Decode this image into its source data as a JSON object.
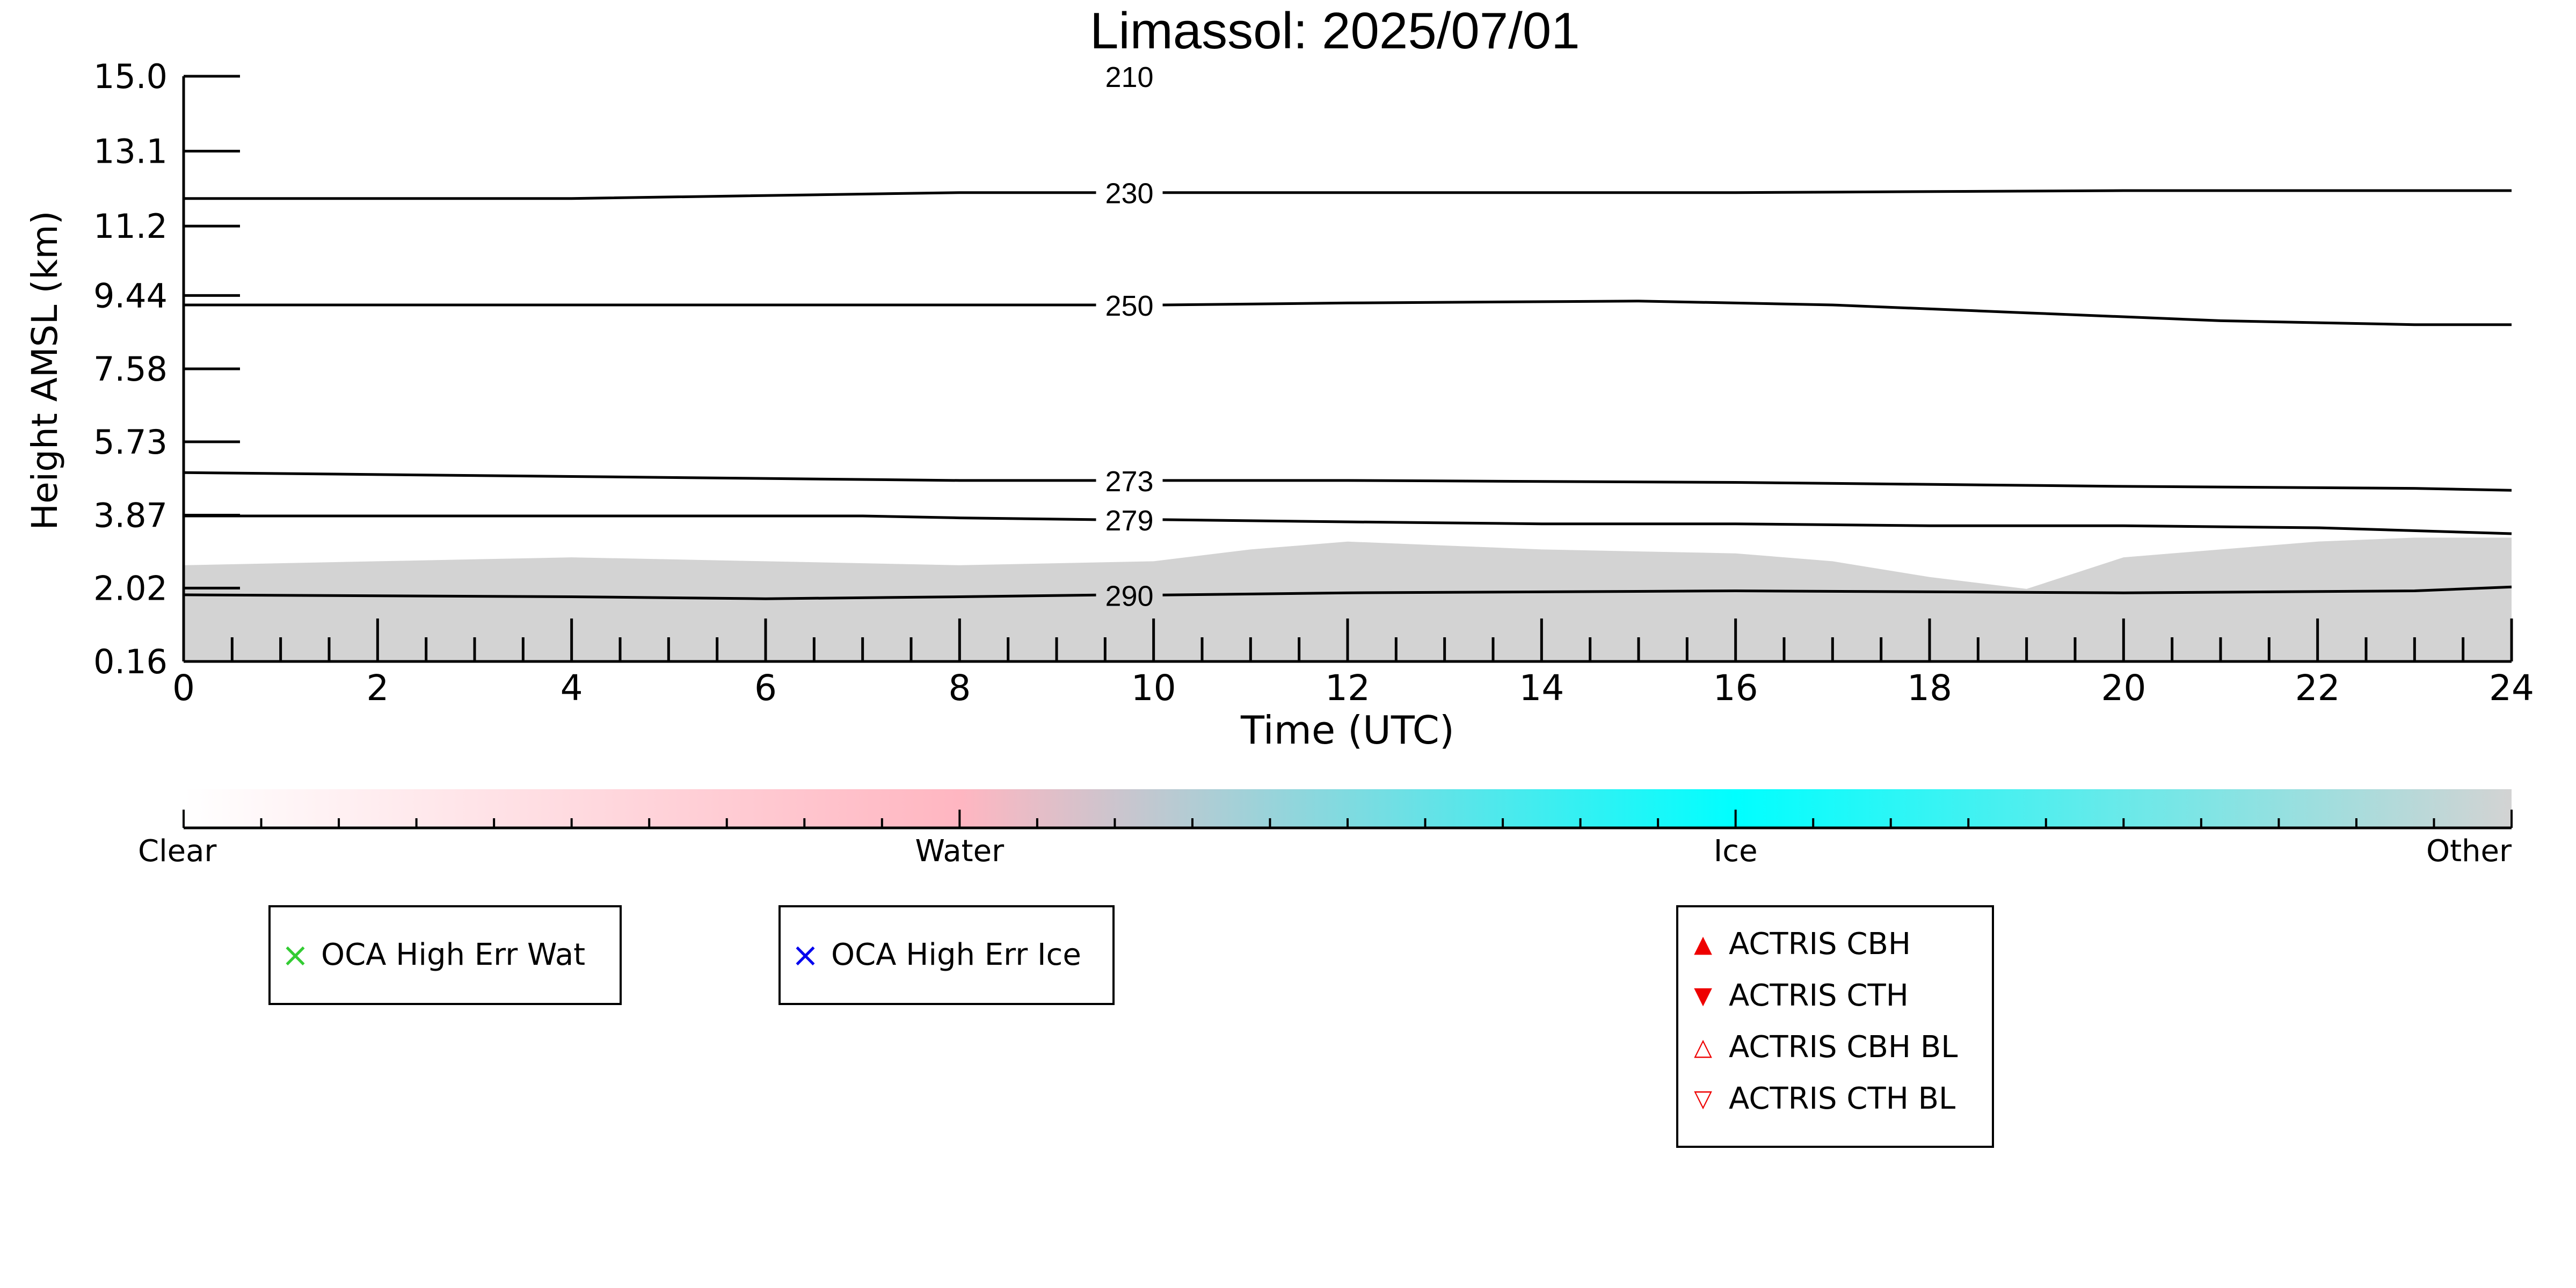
{
  "chart_data": {
    "type": "heatmap",
    "title": "Limassol: 2025/07/01",
    "xlabel": "Time (UTC)",
    "ylabel": "Height AMSL (km)",
    "xlim": [
      0,
      24
    ],
    "ylim": [
      0.16,
      15.0
    ],
    "x_tick_labels": [
      "0",
      "2",
      "4",
      "6",
      "8",
      "10",
      "12",
      "14",
      "16",
      "18",
      "20",
      "22",
      "24"
    ],
    "y_tick_labels": [
      "0.16",
      "2.02",
      "3.87",
      "5.73",
      "7.58",
      "9.44",
      "11.2",
      "13.1",
      "15.0"
    ],
    "y_tick_values": [
      0.16,
      2.02,
      3.87,
      5.73,
      7.58,
      9.44,
      11.2,
      13.1,
      15.0
    ],
    "aerosol_layer": {
      "color": "#d3d3d3",
      "x": [
        0,
        2,
        4,
        6,
        8,
        10,
        11,
        12,
        14,
        16,
        17,
        18,
        19,
        20,
        21,
        22,
        23,
        24
      ],
      "top_km": [
        2.6,
        2.7,
        2.8,
        2.7,
        2.6,
        2.7,
        3.0,
        3.2,
        3.0,
        2.9,
        2.7,
        2.3,
        2.0,
        2.8,
        3.0,
        3.2,
        3.3,
        3.3
      ]
    },
    "temperature_contours": [
      {
        "label": "210",
        "label_x": 9.75,
        "x": [
          0,
          24
        ],
        "y": [
          15.0,
          15.0
        ]
      },
      {
        "label": "230",
        "label_x": 9.75,
        "x": [
          0,
          4,
          8,
          12,
          16,
          20,
          22,
          24
        ],
        "y": [
          11.9,
          11.9,
          12.05,
          12.05,
          12.05,
          12.1,
          12.1,
          12.1
        ]
      },
      {
        "label": "250",
        "label_x": 9.75,
        "x": [
          0,
          4,
          8,
          10,
          12,
          15,
          17,
          19,
          21,
          23,
          24
        ],
        "y": [
          9.2,
          9.2,
          9.2,
          9.2,
          9.25,
          9.3,
          9.2,
          9.0,
          8.8,
          8.7,
          8.7
        ]
      },
      {
        "label": "273",
        "label_x": 9.75,
        "x": [
          0,
          4,
          8,
          12,
          16,
          20,
          23,
          24
        ],
        "y": [
          4.95,
          4.85,
          4.75,
          4.75,
          4.7,
          4.6,
          4.55,
          4.5
        ],
        "note": ""
      },
      {
        "label": "279",
        "label_x": 9.75,
        "x": [
          0,
          4,
          7,
          8,
          10,
          12,
          14,
          16,
          18,
          20,
          22,
          24
        ],
        "y": [
          3.85,
          3.85,
          3.85,
          3.8,
          3.75,
          3.7,
          3.65,
          3.65,
          3.6,
          3.6,
          3.55,
          3.4
        ]
      },
      {
        "label": "290",
        "label_x": 9.75,
        "x": [
          0,
          4,
          6,
          8,
          10,
          12,
          16,
          20,
          23,
          24
        ],
        "y": [
          1.85,
          1.8,
          1.75,
          1.8,
          1.85,
          1.9,
          1.95,
          1.9,
          1.95,
          2.05
        ]
      }
    ],
    "colorbar": {
      "labels": [
        "Clear",
        "Water",
        "Ice",
        "Other"
      ],
      "colors": [
        "#ffffff",
        "#ffb6c1",
        "#00ffff",
        "#d3d3d3"
      ]
    },
    "legends": [
      {
        "entries": [
          {
            "marker": "×",
            "color": "#33cc33",
            "label": "OCA High Err Wat"
          }
        ]
      },
      {
        "entries": [
          {
            "marker": "×",
            "color": "#0000ee",
            "label": "OCA High Err Ice"
          }
        ]
      },
      {
        "entries": [
          {
            "marker": "▲",
            "color": "#ee0000",
            "label": "ACTRIS CBH"
          },
          {
            "marker": "▼",
            "color": "#ee0000",
            "label": "ACTRIS CTH"
          },
          {
            "marker": "△",
            "color": "#ee0000",
            "label": "ACTRIS CBH BL"
          },
          {
            "marker": "▽",
            "color": "#ee0000",
            "label": "ACTRIS CTH BL"
          }
        ]
      }
    ]
  }
}
